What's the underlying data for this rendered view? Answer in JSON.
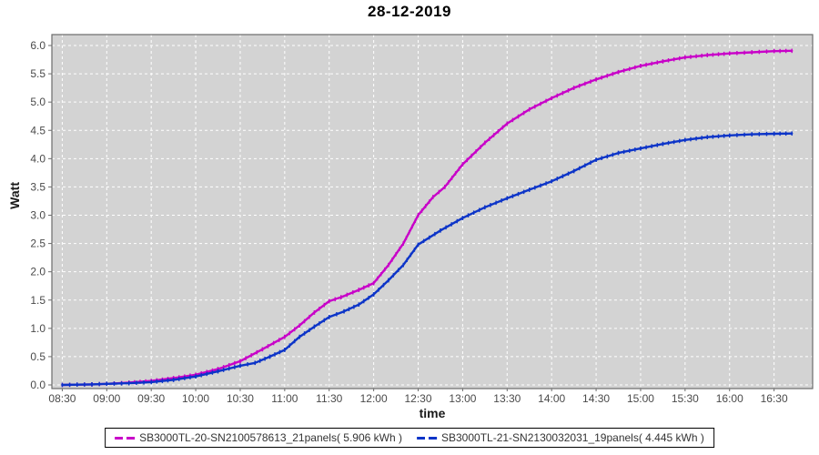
{
  "title": "28-12-2019",
  "colors": {
    "plot_background": "#D3D3D3",
    "gridline": "#FFFFFF",
    "plot_border": "#6B6B6B",
    "tick_label": "#4A4A4A",
    "series1": "#C800C8",
    "series2": "#0C34C8"
  },
  "chart_data": {
    "type": "line",
    "title": "28-12-2019",
    "xlabel": "time",
    "ylabel": "Watt",
    "ylim": [
      0,
      6.0
    ],
    "y_tick_step": 0.5,
    "grid": true,
    "legend_position": "bottom",
    "x_tick_labels": [
      "08:30",
      "09:00",
      "09:30",
      "10:00",
      "10:30",
      "11:00",
      "11:30",
      "12:00",
      "12:30",
      "13:00",
      "13:30",
      "14:00",
      "14:30",
      "15:00",
      "15:30",
      "16:00",
      "16:30"
    ],
    "y_tick_labels": [
      "0.0",
      "0.5",
      "1.0",
      "1.5",
      "2.0",
      "2.5",
      "3.0",
      "3.5",
      "4.0",
      "4.5",
      "5.0",
      "5.5",
      "6.0"
    ],
    "series": [
      {
        "name": "SB3000TL-20-SN2100578613_21panels( 5.906 kWh )",
        "color": "#C800C8",
        "total_kwh": 5.906,
        "points": [
          [
            "08:30",
            0.0
          ],
          [
            "08:40",
            0.005
          ],
          [
            "08:50",
            0.01
          ],
          [
            "09:00",
            0.02
          ],
          [
            "09:15",
            0.04
          ],
          [
            "09:30",
            0.07
          ],
          [
            "09:45",
            0.12
          ],
          [
            "10:00",
            0.18
          ],
          [
            "10:15",
            0.28
          ],
          [
            "10:30",
            0.42
          ],
          [
            "10:45",
            0.63
          ],
          [
            "11:00",
            0.85
          ],
          [
            "11:10",
            1.05
          ],
          [
            "11:20",
            1.28
          ],
          [
            "11:30",
            1.48
          ],
          [
            "11:38",
            1.55
          ],
          [
            "11:50",
            1.68
          ],
          [
            "12:00",
            1.8
          ],
          [
            "12:10",
            2.12
          ],
          [
            "12:20",
            2.5
          ],
          [
            "12:30",
            3.0
          ],
          [
            "12:40",
            3.32
          ],
          [
            "12:48",
            3.5
          ],
          [
            "13:00",
            3.9
          ],
          [
            "13:15",
            4.28
          ],
          [
            "13:30",
            4.62
          ],
          [
            "13:45",
            4.87
          ],
          [
            "14:00",
            5.07
          ],
          [
            "14:15",
            5.25
          ],
          [
            "14:30",
            5.4
          ],
          [
            "14:45",
            5.53
          ],
          [
            "15:00",
            5.64
          ],
          [
            "15:15",
            5.72
          ],
          [
            "15:30",
            5.79
          ],
          [
            "15:45",
            5.83
          ],
          [
            "16:00",
            5.86
          ],
          [
            "16:15",
            5.88
          ],
          [
            "16:30",
            5.9
          ],
          [
            "16:42",
            5.906
          ]
        ]
      },
      {
        "name": "SB3000TL-21-SN2130032031_19panels( 4.445 kWh )",
        "color": "#0C34C8",
        "total_kwh": 4.445,
        "points": [
          [
            "08:30",
            0.0
          ],
          [
            "08:40",
            0.005
          ],
          [
            "08:50",
            0.01
          ],
          [
            "09:00",
            0.02
          ],
          [
            "09:15",
            0.03
          ],
          [
            "09:30",
            0.05
          ],
          [
            "09:45",
            0.09
          ],
          [
            "10:00",
            0.15
          ],
          [
            "10:15",
            0.24
          ],
          [
            "10:30",
            0.34
          ],
          [
            "10:40",
            0.39
          ],
          [
            "10:50",
            0.5
          ],
          [
            "11:00",
            0.62
          ],
          [
            "11:10",
            0.85
          ],
          [
            "11:20",
            1.03
          ],
          [
            "11:30",
            1.2
          ],
          [
            "11:40",
            1.3
          ],
          [
            "11:50",
            1.42
          ],
          [
            "12:00",
            1.6
          ],
          [
            "12:10",
            1.85
          ],
          [
            "12:20",
            2.12
          ],
          [
            "12:30",
            2.48
          ],
          [
            "12:45",
            2.73
          ],
          [
            "13:00",
            2.95
          ],
          [
            "13:15",
            3.14
          ],
          [
            "13:30",
            3.3
          ],
          [
            "13:45",
            3.45
          ],
          [
            "14:00",
            3.6
          ],
          [
            "14:15",
            3.78
          ],
          [
            "14:30",
            3.98
          ],
          [
            "14:45",
            4.1
          ],
          [
            "15:00",
            4.18
          ],
          [
            "15:15",
            4.26
          ],
          [
            "15:30",
            4.33
          ],
          [
            "15:45",
            4.38
          ],
          [
            "16:00",
            4.41
          ],
          [
            "16:15",
            4.43
          ],
          [
            "16:30",
            4.44
          ],
          [
            "16:42",
            4.445
          ]
        ]
      }
    ]
  }
}
